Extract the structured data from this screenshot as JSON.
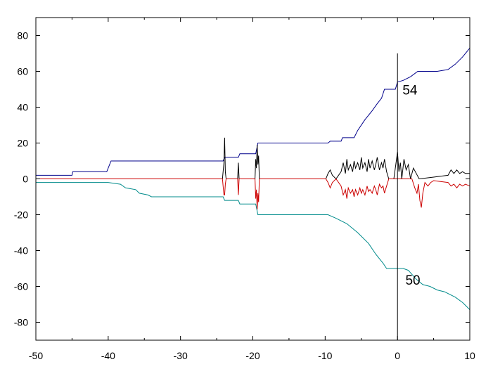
{
  "chart_data": {
    "type": "line",
    "title": "",
    "xlabel": "",
    "ylabel": "",
    "xlim": [
      -50,
      10
    ],
    "ylim": [
      -90,
      90
    ],
    "x_ticks": [
      -50,
      -40,
      -30,
      -20,
      -10,
      0,
      10
    ],
    "x_tick_labels": [
      "-50",
      "-40",
      "-30",
      "-20",
      "-10",
      "0",
      "10"
    ],
    "y_ticks": [
      -80,
      -60,
      -40,
      -20,
      0,
      20,
      40,
      60,
      80
    ],
    "y_tick_labels": [
      "-80",
      "-60",
      "-40",
      "-20",
      "0",
      "20",
      "40",
      "60",
      "80"
    ],
    "grid": false,
    "legend": "none",
    "annotations": [
      {
        "text": "54",
        "x": 0.7,
        "y": 47
      },
      {
        "text": "50",
        "x": 1.1,
        "y": -59
      }
    ],
    "series": [
      {
        "color": "#00008b",
        "points": [
          [
            -50,
            2
          ],
          [
            -45,
            2
          ],
          [
            -44.9,
            4
          ],
          [
            -40.2,
            4
          ],
          [
            -39.6,
            10
          ],
          [
            -24.1,
            10
          ],
          [
            -23.9,
            12
          ],
          [
            -22,
            12
          ],
          [
            -21.8,
            14
          ],
          [
            -19.6,
            14
          ],
          [
            -19.3,
            20
          ],
          [
            -9.6,
            20
          ],
          [
            -9.3,
            21
          ],
          [
            -7.8,
            21
          ],
          [
            -7.6,
            23
          ],
          [
            -6,
            23
          ],
          [
            -5.5,
            27
          ],
          [
            -4.5,
            33
          ],
          [
            -3.5,
            38
          ],
          [
            -2.8,
            42
          ],
          [
            -2.2,
            45
          ],
          [
            -1.8,
            50
          ],
          [
            -0.3,
            50
          ],
          [
            0,
            54
          ],
          [
            0.8,
            55
          ],
          [
            1.8,
            57
          ],
          [
            2.8,
            60
          ],
          [
            5.5,
            60
          ],
          [
            7,
            61
          ],
          [
            8,
            64
          ],
          [
            9,
            68
          ],
          [
            10,
            73
          ]
        ]
      },
      {
        "color": "#008b8b",
        "points": [
          [
            -50,
            -2
          ],
          [
            -40,
            -2
          ],
          [
            -38.3,
            -3
          ],
          [
            -37.6,
            -5
          ],
          [
            -36.2,
            -6
          ],
          [
            -35.7,
            -8
          ],
          [
            -34.5,
            -9
          ],
          [
            -34,
            -10
          ],
          [
            -24.1,
            -10
          ],
          [
            -23.9,
            -12
          ],
          [
            -22,
            -12
          ],
          [
            -21.8,
            -14
          ],
          [
            -19.6,
            -14
          ],
          [
            -19.3,
            -20
          ],
          [
            -9.6,
            -20
          ],
          [
            -8.5,
            -22
          ],
          [
            -7,
            -25
          ],
          [
            -5.5,
            -30
          ],
          [
            -4,
            -36
          ],
          [
            -3,
            -42
          ],
          [
            -2,
            -47
          ],
          [
            -1.5,
            -50
          ],
          [
            0.8,
            -50
          ],
          [
            1.5,
            -51
          ],
          [
            2.6,
            -56
          ],
          [
            3.5,
            -59
          ],
          [
            4.5,
            -60
          ],
          [
            5.5,
            -62
          ],
          [
            6.5,
            -63
          ],
          [
            8,
            -66
          ],
          [
            9,
            -69
          ],
          [
            10,
            -73
          ]
        ]
      },
      {
        "color": "#000000",
        "points": [
          [
            -50,
            0
          ],
          [
            -24.2,
            0
          ],
          [
            -24,
            9
          ],
          [
            -23.9,
            23
          ],
          [
            -23.8,
            4
          ],
          [
            -23.7,
            0
          ],
          [
            -22.1,
            0
          ],
          [
            -22,
            9
          ],
          [
            -21.9,
            0
          ],
          [
            -19.7,
            0
          ],
          [
            -19.6,
            11
          ],
          [
            -19.5,
            6
          ],
          [
            -19.4,
            19
          ],
          [
            -19.3,
            8
          ],
          [
            -19.2,
            13
          ],
          [
            -19.1,
            0
          ],
          [
            -9.9,
            0
          ],
          [
            -9.6,
            3
          ],
          [
            -9.3,
            5
          ],
          [
            -9,
            2
          ],
          [
            -8.5,
            0
          ],
          [
            -7.8,
            4
          ],
          [
            -7.5,
            9
          ],
          [
            -7.2,
            3
          ],
          [
            -7,
            11
          ],
          [
            -6.8,
            5
          ],
          [
            -6.5,
            8
          ],
          [
            -6.2,
            4
          ],
          [
            -6,
            10
          ],
          [
            -5.8,
            6
          ],
          [
            -5.5,
            9
          ],
          [
            -5.2,
            5
          ],
          [
            -5,
            12
          ],
          [
            -4.8,
            6
          ],
          [
            -4.5,
            9
          ],
          [
            -4.2,
            4
          ],
          [
            -4,
            11
          ],
          [
            -3.8,
            6
          ],
          [
            -3.5,
            10
          ],
          [
            -3.2,
            5
          ],
          [
            -3,
            8
          ],
          [
            -2.8,
            12
          ],
          [
            -2.5,
            5
          ],
          [
            -2.2,
            9
          ],
          [
            -2,
            6
          ],
          [
            -1.8,
            11
          ],
          [
            -1.5,
            4
          ],
          [
            -1.2,
            0
          ],
          [
            -0.5,
            0
          ],
          [
            -0.3,
            6
          ],
          [
            0,
            15
          ],
          [
            0.2,
            4
          ],
          [
            0.4,
            9
          ],
          [
            0.6,
            0
          ],
          [
            0.9,
            11
          ],
          [
            1.2,
            5
          ],
          [
            1.5,
            8
          ],
          [
            1.8,
            0
          ],
          [
            2.2,
            6
          ],
          [
            2.6,
            3
          ],
          [
            3,
            0
          ],
          [
            5,
            1
          ],
          [
            7,
            2
          ],
          [
            7.4,
            5
          ],
          [
            7.8,
            3
          ],
          [
            8.2,
            5
          ],
          [
            8.6,
            3
          ],
          [
            9,
            4
          ],
          [
            9.4,
            3
          ],
          [
            10,
            3
          ]
        ]
      },
      {
        "color": "#cc0000",
        "points": [
          [
            -50,
            0
          ],
          [
            -24.2,
            0
          ],
          [
            -24,
            -9
          ],
          [
            -23.9,
            -9
          ],
          [
            -23.8,
            -3
          ],
          [
            -23.7,
            0
          ],
          [
            -22.1,
            0
          ],
          [
            -22,
            -9
          ],
          [
            -21.9,
            0
          ],
          [
            -19.7,
            0
          ],
          [
            -19.6,
            -11
          ],
          [
            -19.5,
            -6
          ],
          [
            -19.4,
            -17
          ],
          [
            -19.3,
            -8
          ],
          [
            -19.2,
            -13
          ],
          [
            -19.1,
            0
          ],
          [
            -9.9,
            0
          ],
          [
            -9.6,
            -2
          ],
          [
            -9.3,
            -5
          ],
          [
            -9,
            -2
          ],
          [
            -8.5,
            0
          ],
          [
            -7.8,
            -4
          ],
          [
            -7.5,
            -9
          ],
          [
            -7.2,
            -6
          ],
          [
            -7,
            -11
          ],
          [
            -6.8,
            -5
          ],
          [
            -6.5,
            -8
          ],
          [
            -6.2,
            -6
          ],
          [
            -6,
            -10
          ],
          [
            -5.8,
            -6
          ],
          [
            -5.5,
            -9
          ],
          [
            -5.2,
            -5
          ],
          [
            -5,
            -8
          ],
          [
            -4.8,
            -6
          ],
          [
            -4.5,
            -9
          ],
          [
            -4.2,
            -4
          ],
          [
            -4,
            -7
          ],
          [
            -3.8,
            -6
          ],
          [
            -3.5,
            -8
          ],
          [
            -3.2,
            -4
          ],
          [
            -3,
            -6
          ],
          [
            -2.8,
            -9
          ],
          [
            -2.5,
            -3
          ],
          [
            -2.2,
            -5
          ],
          [
            -2,
            -4
          ],
          [
            -1.8,
            -8
          ],
          [
            -1.5,
            -4
          ],
          [
            -1.2,
            0
          ],
          [
            2,
            0
          ],
          [
            2.4,
            -5
          ],
          [
            2.7,
            -8
          ],
          [
            2.9,
            -3
          ],
          [
            3.1,
            -12
          ],
          [
            3.3,
            -16
          ],
          [
            3.5,
            -8
          ],
          [
            3.8,
            -2
          ],
          [
            4.2,
            -4
          ],
          [
            4.6,
            -2
          ],
          [
            5,
            -1
          ],
          [
            7,
            -2
          ],
          [
            7.4,
            -4
          ],
          [
            7.8,
            -3
          ],
          [
            8.2,
            -5
          ],
          [
            8.6,
            -3
          ],
          [
            9,
            -4
          ],
          [
            9.4,
            -3
          ],
          [
            10,
            -4
          ]
        ]
      },
      {
        "color": "#000000",
        "points": [
          [
            0,
            -90
          ],
          [
            0,
            70
          ]
        ]
      }
    ]
  }
}
